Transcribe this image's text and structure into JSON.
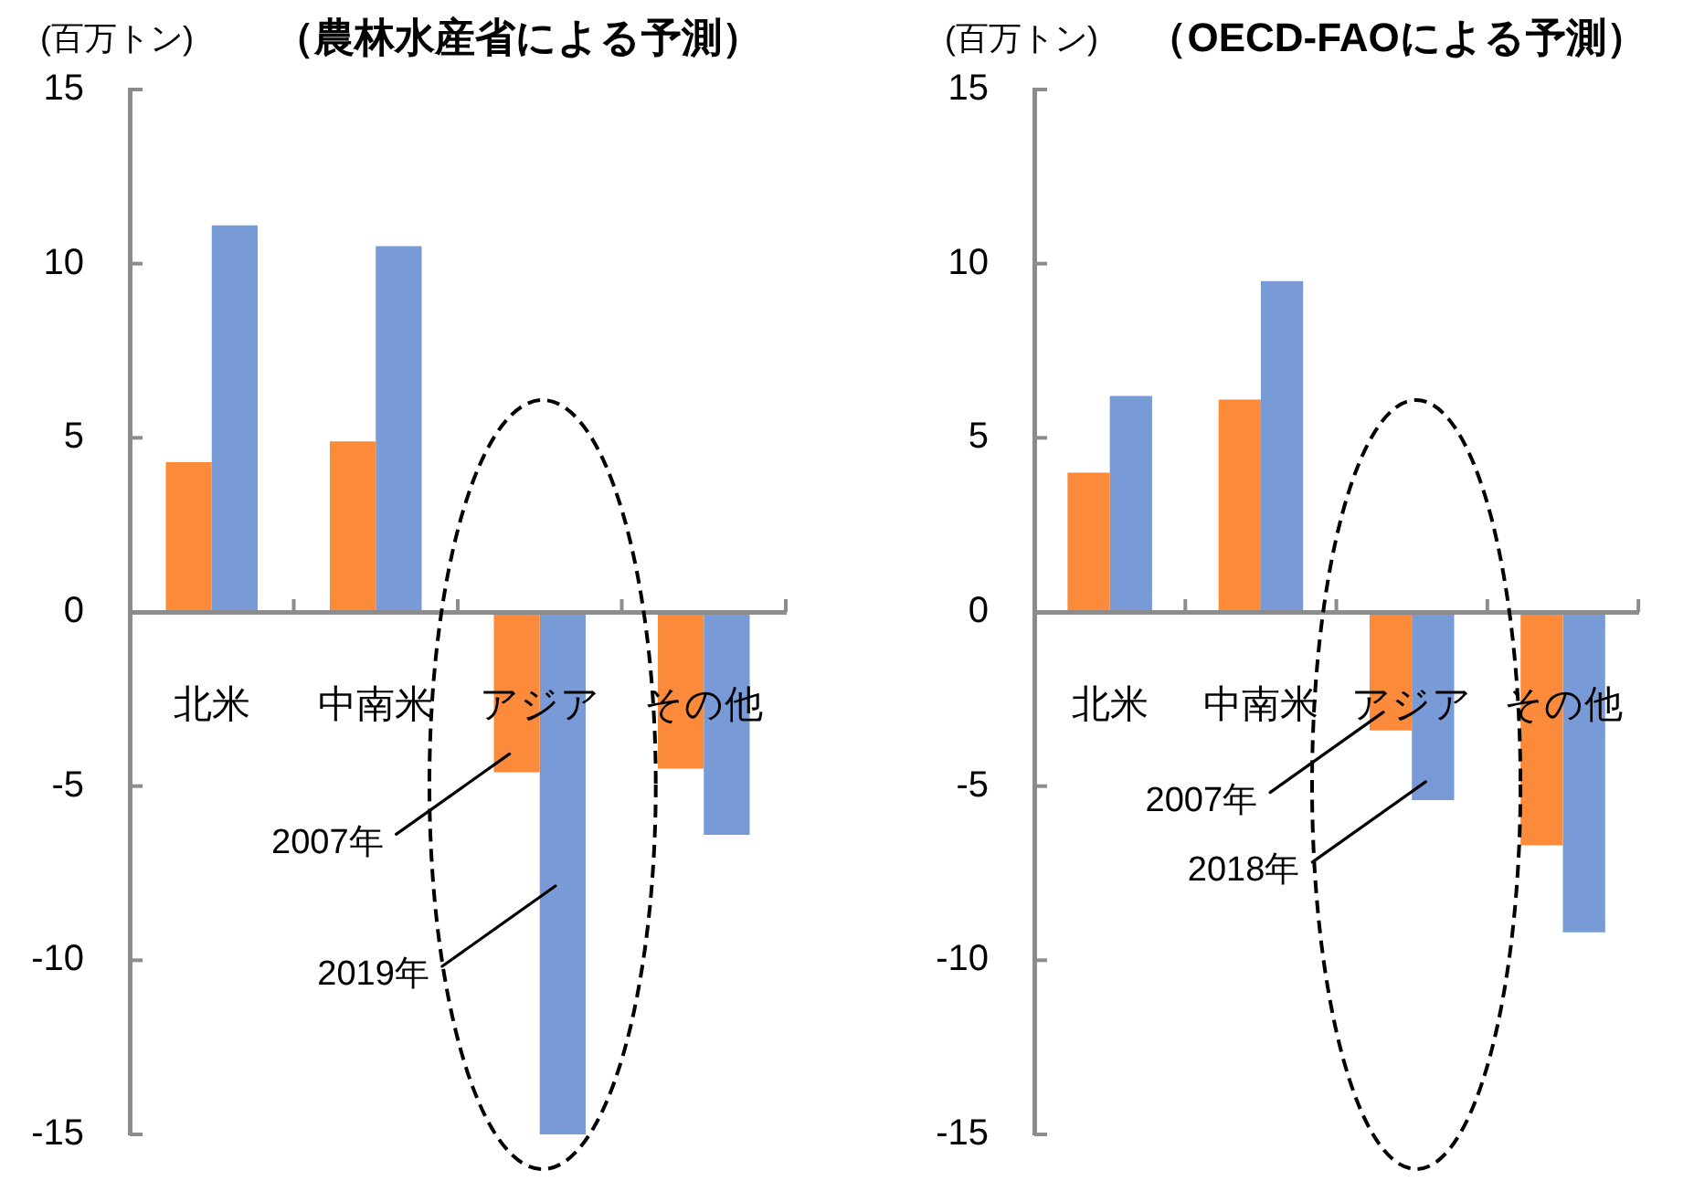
{
  "chart_data": [
    {
      "type": "bar",
      "title": "（農林水産省による予測）",
      "ylabel": "(百万トン)",
      "categories": [
        "北米",
        "中南米",
        "アジア",
        "その他"
      ],
      "series": [
        {
          "name": "2007年",
          "color": "#fc8a3b",
          "values": [
            4.3,
            4.9,
            -4.6,
            -4.5
          ]
        },
        {
          "name": "2019年",
          "color": "#789bd8",
          "values": [
            11.1,
            10.5,
            -15,
            -6.4
          ]
        }
      ],
      "ylim": [
        -15,
        15
      ],
      "yticks": [
        -15,
        -10,
        -5,
        0,
        5,
        10,
        15
      ],
      "grid": false,
      "legend": false
    },
    {
      "type": "bar",
      "title": "（OECD-FAOによる予測）",
      "ylabel": "(百万トン)",
      "categories": [
        "北米",
        "中南米",
        "アジア",
        "その他"
      ],
      "series": [
        {
          "name": "2007年",
          "color": "#fc8a3b",
          "values": [
            4.0,
            6.1,
            -3.4,
            -6.7
          ]
        },
        {
          "name": "2018年",
          "color": "#789bd8",
          "values": [
            6.2,
            9.5,
            -5.4,
            -9.2
          ]
        }
      ],
      "ylim": [
        -15,
        15
      ],
      "yticks": [
        -15,
        -10,
        -5,
        0,
        5,
        10,
        15
      ],
      "grid": false,
      "legend": false
    }
  ]
}
